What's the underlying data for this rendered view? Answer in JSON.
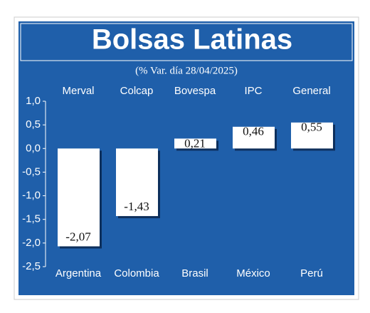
{
  "chart_data": {
    "type": "bar",
    "title": "Bolsas Latinas",
    "subtitle": "(% Var. día 28/04/2025)",
    "categories": [
      "Argentina",
      "Colombia",
      "Brasil",
      "México",
      "Perú"
    ],
    "index_names": [
      "Merval",
      "Colcap",
      "Bovespa",
      "IPC",
      "General"
    ],
    "values": [
      -2.07,
      -1.43,
      0.21,
      0.46,
      0.55
    ],
    "value_labels": [
      "-2,07",
      "-1,43",
      "0,21",
      "0,46",
      "0,55"
    ],
    "color": "#ffffff",
    "ylim": [
      -2.5,
      1.0
    ],
    "yticks": [
      {
        "value": 1.0,
        "label": "1,0"
      },
      {
        "value": 0.5,
        "label": "0,5"
      },
      {
        "value": 0.0,
        "label": "0,0"
      },
      {
        "value": -0.5,
        "label": "-0,5"
      },
      {
        "value": -1.0,
        "label": "-1,0"
      },
      {
        "value": -1.5,
        "label": "-1,5"
      },
      {
        "value": -2.0,
        "label": "-2,0"
      },
      {
        "value": -2.5,
        "label": "-2,5"
      }
    ],
    "grid": false
  }
}
